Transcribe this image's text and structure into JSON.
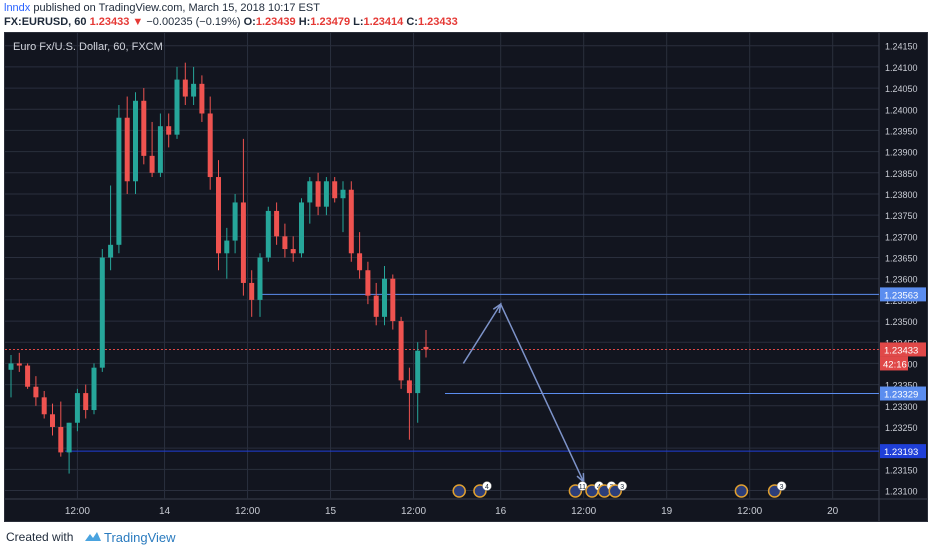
{
  "header": {
    "author": "lnndx",
    "published_text": " published on TradingView.com, March 15, 2018 10:17 EST",
    "symbol": "FX:EURUSD, 60",
    "last": "1.23433",
    "arrow": "▼",
    "change": "−0.00235 (−0.19%)",
    "o_label": "O:",
    "o_value": "1.23439",
    "h_label": "H:",
    "h_value": "1.23479",
    "l_label": "L:",
    "l_value": "1.23414",
    "c_label": "C:",
    "c_value": "1.23433"
  },
  "footer": {
    "created_with": "Created with",
    "brand": "TradingView"
  },
  "colors": {
    "background": "#12151f",
    "grid": "#2a2f3d",
    "up": "#26a69a",
    "down": "#ef5350",
    "level_blue": "#5b8def",
    "level_dark_blue": "#1f3fd8",
    "price_red": "#e04848",
    "arrow": "#7d93c9"
  },
  "chart_data": {
    "type": "candlestick",
    "title": "Euro Fx/U.S. Dollar, 60, FXCM",
    "x_ticks": [
      "12:00",
      "14",
      "12:00",
      "15",
      "12:00",
      "16",
      "12:00",
      "19",
      "12:00",
      "20"
    ],
    "y_ticks": [
      "1.24150",
      "1.24100",
      "1.24050",
      "1.24000",
      "1.23950",
      "1.23900",
      "1.23850",
      "1.23800",
      "1.23750",
      "1.23700",
      "1.23650",
      "1.23600",
      "1.23550",
      "1.23500",
      "1.23450",
      "1.23400",
      "1.23350",
      "1.23300",
      "1.23250",
      "1.23200",
      "1.23150",
      "1.23100"
    ],
    "ylim": [
      1.2308,
      1.2418
    ],
    "grid": true,
    "candles": [
      {
        "o": 1.23385,
        "h": 1.2342,
        "l": 1.2332,
        "c": 1.234
      },
      {
        "o": 1.234,
        "h": 1.23425,
        "l": 1.2338,
        "c": 1.23395
      },
      {
        "o": 1.23395,
        "h": 1.234,
        "l": 1.2334,
        "c": 1.23345
      },
      {
        "o": 1.23345,
        "h": 1.2337,
        "l": 1.233,
        "c": 1.2332
      },
      {
        "o": 1.2332,
        "h": 1.23335,
        "l": 1.2327,
        "c": 1.2328
      },
      {
        "o": 1.2328,
        "h": 1.23305,
        "l": 1.2323,
        "c": 1.2325
      },
      {
        "o": 1.2325,
        "h": 1.2331,
        "l": 1.2318,
        "c": 1.2319
      },
      {
        "o": 1.2319,
        "h": 1.2326,
        "l": 1.2314,
        "c": 1.2326
      },
      {
        "o": 1.2326,
        "h": 1.2334,
        "l": 1.2324,
        "c": 1.2333
      },
      {
        "o": 1.2333,
        "h": 1.2335,
        "l": 1.2327,
        "c": 1.2329
      },
      {
        "o": 1.2329,
        "h": 1.234,
        "l": 1.2328,
        "c": 1.2339
      },
      {
        "o": 1.2339,
        "h": 1.2367,
        "l": 1.2338,
        "c": 1.2365
      },
      {
        "o": 1.2365,
        "h": 1.2382,
        "l": 1.2362,
        "c": 1.2368
      },
      {
        "o": 1.2368,
        "h": 1.2401,
        "l": 1.2366,
        "c": 1.2398
      },
      {
        "o": 1.2398,
        "h": 1.2403,
        "l": 1.238,
        "c": 1.2383
      },
      {
        "o": 1.2383,
        "h": 1.2404,
        "l": 1.238,
        "c": 1.2402
      },
      {
        "o": 1.2402,
        "h": 1.2405,
        "l": 1.2387,
        "c": 1.2389
      },
      {
        "o": 1.2389,
        "h": 1.2397,
        "l": 1.2384,
        "c": 1.2385
      },
      {
        "o": 1.2385,
        "h": 1.2399,
        "l": 1.2384,
        "c": 1.2396
      },
      {
        "o": 1.2396,
        "h": 1.2399,
        "l": 1.2391,
        "c": 1.2394
      },
      {
        "o": 1.2394,
        "h": 1.241,
        "l": 1.2393,
        "c": 1.2407
      },
      {
        "o": 1.2407,
        "h": 1.2411,
        "l": 1.2401,
        "c": 1.2403
      },
      {
        "o": 1.2403,
        "h": 1.241,
        "l": 1.2401,
        "c": 1.2406
      },
      {
        "o": 1.2406,
        "h": 1.2408,
        "l": 1.2397,
        "c": 1.2399
      },
      {
        "o": 1.2399,
        "h": 1.2403,
        "l": 1.2381,
        "c": 1.2384
      },
      {
        "o": 1.2384,
        "h": 1.2388,
        "l": 1.2362,
        "c": 1.2366
      },
      {
        "o": 1.2366,
        "h": 1.2372,
        "l": 1.236,
        "c": 1.2369
      },
      {
        "o": 1.2369,
        "h": 1.238,
        "l": 1.2366,
        "c": 1.2378
      },
      {
        "o": 1.2378,
        "h": 1.2393,
        "l": 1.2356,
        "c": 1.2359
      },
      {
        "o": 1.2359,
        "h": 1.2362,
        "l": 1.2351,
        "c": 1.2355
      },
      {
        "o": 1.2355,
        "h": 1.2366,
        "l": 1.2351,
        "c": 1.2365
      },
      {
        "o": 1.2365,
        "h": 1.2377,
        "l": 1.2364,
        "c": 1.2376
      },
      {
        "o": 1.2376,
        "h": 1.2378,
        "l": 1.2368,
        "c": 1.237
      },
      {
        "o": 1.237,
        "h": 1.2373,
        "l": 1.2365,
        "c": 1.2367
      },
      {
        "o": 1.2367,
        "h": 1.237,
        "l": 1.2364,
        "c": 1.2366
      },
      {
        "o": 1.2366,
        "h": 1.2379,
        "l": 1.2365,
        "c": 1.2378
      },
      {
        "o": 1.2378,
        "h": 1.2384,
        "l": 1.2373,
        "c": 1.2383
      },
      {
        "o": 1.2383,
        "h": 1.2385,
        "l": 1.2375,
        "c": 1.2377
      },
      {
        "o": 1.2377,
        "h": 1.2384,
        "l": 1.2375,
        "c": 1.2383
      },
      {
        "o": 1.2383,
        "h": 1.2384,
        "l": 1.2378,
        "c": 1.2379
      },
      {
        "o": 1.2379,
        "h": 1.2383,
        "l": 1.2371,
        "c": 1.2381
      },
      {
        "o": 1.2381,
        "h": 1.2383,
        "l": 1.2364,
        "c": 1.2366
      },
      {
        "o": 1.2366,
        "h": 1.2371,
        "l": 1.236,
        "c": 1.2362
      },
      {
        "o": 1.2362,
        "h": 1.2364,
        "l": 1.2354,
        "c": 1.2356
      },
      {
        "o": 1.2356,
        "h": 1.2359,
        "l": 1.2349,
        "c": 1.2351
      },
      {
        "o": 1.2351,
        "h": 1.2363,
        "l": 1.2349,
        "c": 1.236
      },
      {
        "o": 1.236,
        "h": 1.2361,
        "l": 1.2348,
        "c": 1.235
      },
      {
        "o": 1.235,
        "h": 1.2351,
        "l": 1.2334,
        "c": 1.2336
      },
      {
        "o": 1.2336,
        "h": 1.2339,
        "l": 1.2322,
        "c": 1.2333
      },
      {
        "o": 1.2333,
        "h": 1.2345,
        "l": 1.2326,
        "c": 1.2343
      },
      {
        "o": 1.23439,
        "h": 1.23479,
        "l": 1.23414,
        "c": 1.23433
      }
    ],
    "levels": [
      {
        "value": 1.23563,
        "label": "1.23563",
        "style": "blue"
      },
      {
        "value": 1.23433,
        "label": "1.23433",
        "style": "current"
      },
      {
        "value": 1.23329,
        "label": "1.23329",
        "style": "blue"
      },
      {
        "value": 1.23193,
        "label": "1.23193",
        "style": "darkblue"
      }
    ],
    "countdown": "42:16",
    "events": [
      {
        "x_index": 54,
        "badge": ""
      },
      {
        "x_index": 56.5,
        "badge": "4"
      },
      {
        "x_index": 68,
        "badge": "11"
      },
      {
        "x_index": 70,
        "badge": "4"
      },
      {
        "x_index": 71.5,
        "badge": "3"
      },
      {
        "x_index": 72.8,
        "badge": "3"
      },
      {
        "x_index": 88,
        "badge": ""
      },
      {
        "x_index": 92,
        "badge": "3"
      }
    ],
    "projection": [
      {
        "x_index": 54.5,
        "y": 1.234
      },
      {
        "x_index": 59,
        "y": 1.2354
      },
      {
        "x_index": 69,
        "y": 1.2312
      }
    ]
  }
}
